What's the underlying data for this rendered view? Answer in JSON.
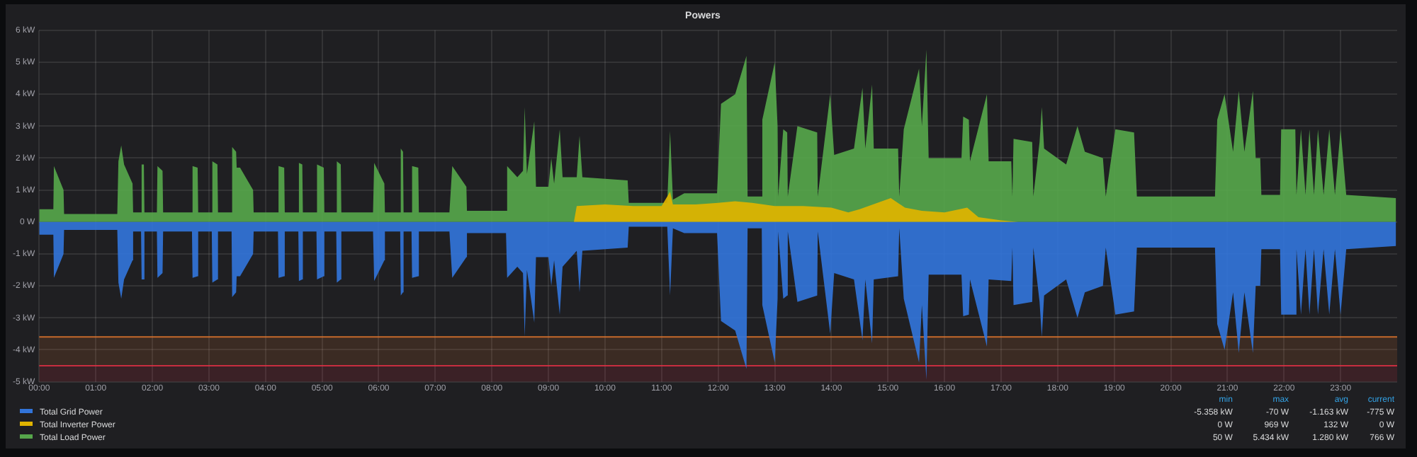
{
  "chart_data": {
    "type": "area",
    "title": "Powers",
    "x": [
      0,
      0.25,
      0.26,
      0.43,
      0.44,
      1.38,
      1.4,
      1.45,
      1.5,
      1.65,
      1.66,
      1.8,
      1.81,
      1.85,
      1.86,
      2.08,
      2.09,
      2.18,
      2.19,
      2.7,
      2.71,
      2.8,
      2.81,
      3.05,
      3.06,
      3.15,
      3.16,
      3.4,
      3.41,
      3.48,
      3.49,
      3.55,
      3.78,
      3.79,
      4.22,
      4.23,
      4.33,
      4.34,
      4.58,
      4.59,
      4.65,
      4.66,
      4.9,
      4.91,
      5.03,
      5.04,
      5.25,
      5.26,
      5.33,
      5.34,
      5.9,
      5.92,
      6.1,
      6.11,
      6.38,
      6.39,
      6.43,
      6.44,
      6.58,
      6.59,
      6.7,
      6.71,
      7.25,
      7.3,
      7.55,
      7.56,
      8.25,
      8.27,
      8.45,
      8.55,
      8.58,
      8.62,
      8.75,
      8.78,
      9.0,
      9.05,
      9.1,
      9.2,
      9.25,
      9.5,
      9.55,
      9.6,
      10.4,
      10.42,
      11.1,
      11.15,
      11.2,
      11.4,
      11.98,
      12.05,
      12.3,
      12.5,
      12.52,
      12.77,
      12.78,
      13.0,
      13.05,
      13.06,
      13.15,
      13.22,
      13.23,
      13.4,
      13.75,
      13.76,
      13.98,
      14.05,
      14.4,
      14.55,
      14.6,
      14.72,
      14.75,
      15.18,
      15.2,
      15.28,
      15.55,
      15.6,
      15.68,
      15.72,
      16.3,
      16.33,
      16.43,
      16.45,
      16.75,
      16.78,
      17.18,
      17.2,
      17.22,
      17.55,
      17.57,
      17.68,
      17.72,
      17.76,
      18.15,
      18.35,
      18.48,
      18.8,
      18.85,
      19.02,
      19.35,
      19.4,
      20.78,
      20.82,
      20.95,
      21.1,
      21.2,
      21.3,
      21.45,
      21.5,
      21.58,
      21.6,
      21.93,
      21.95,
      22.2,
      22.22,
      22.3,
      22.38,
      22.45,
      22.53,
      22.6,
      22.7,
      22.8,
      22.9,
      23.0,
      23.1,
      23.98
    ],
    "series": [
      {
        "name": "Total Grid Power",
        "color": "#3274d9",
        "values": [
          -0.4,
          -0.4,
          -1.75,
          -1.0,
          -0.25,
          -0.25,
          -1.9,
          -2.4,
          -1.8,
          -1.2,
          -0.3,
          -0.3,
          -1.8,
          -1.8,
          -0.3,
          -0.3,
          -1.75,
          -1.6,
          -0.3,
          -0.3,
          -1.75,
          -1.7,
          -0.3,
          -0.3,
          -1.9,
          -1.8,
          -0.3,
          -0.3,
          -2.35,
          -2.2,
          -1.7,
          -1.7,
          -1.0,
          -0.3,
          -0.3,
          -1.75,
          -1.7,
          -0.3,
          -0.3,
          -1.85,
          -1.8,
          -0.3,
          -0.3,
          -1.8,
          -1.7,
          -0.3,
          -0.3,
          -1.9,
          -1.8,
          -0.3,
          -0.3,
          -1.85,
          -1.2,
          -0.3,
          -0.3,
          -2.3,
          -2.2,
          -0.3,
          -0.3,
          -1.75,
          -1.7,
          -0.3,
          -0.3,
          -1.75,
          -1.1,
          -0.35,
          -0.35,
          -1.75,
          -1.4,
          -1.6,
          -3.6,
          -1.5,
          -3.15,
          -1.1,
          -1.1,
          -2.0,
          -1.2,
          -2.9,
          -1.4,
          -0.9,
          -2.2,
          -0.9,
          -0.8,
          -0.15,
          -0.15,
          -2.3,
          -0.2,
          -0.35,
          -0.35,
          -3.1,
          -3.4,
          -4.6,
          -0.2,
          -0.2,
          -2.6,
          -4.4,
          -2.4,
          -0.3,
          -2.4,
          -2.3,
          -0.3,
          -2.5,
          -2.3,
          -0.3,
          -3.5,
          -1.6,
          -1.8,
          -3.7,
          -1.8,
          -3.8,
          -1.8,
          -1.7,
          -0.2,
          -2.4,
          -4.4,
          -2.6,
          -4.95,
          -1.65,
          -1.65,
          -2.95,
          -2.9,
          -1.8,
          -3.9,
          -1.8,
          -1.85,
          -0.8,
          -2.6,
          -2.5,
          -0.8,
          -2.5,
          -3.6,
          -2.3,
          -1.8,
          -3.0,
          -2.2,
          -2.0,
          -0.8,
          -2.9,
          -2.8,
          -0.8,
          -0.8,
          -3.2,
          -4.0,
          -2.2,
          -4.1,
          -2.2,
          -4.1,
          -2.0,
          -2.0,
          -0.85,
          -0.85,
          -2.9,
          -2.9,
          -0.85,
          -2.9,
          -0.85,
          -2.9,
          -0.85,
          -2.9,
          -0.85,
          -2.9,
          -0.85,
          -2.9,
          -0.85,
          -0.75
        ]
      },
      {
        "name": "Total Inverter Power",
        "color": "#e0b400",
        "x": [
          0,
          9.45,
          9.5,
          10,
          10.5,
          11,
          11.15,
          11.2,
          11.6,
          12,
          12.3,
          12.6,
          13,
          13.5,
          14,
          14.3,
          14.5,
          15.05,
          15.3,
          15.6,
          16,
          16.4,
          16.6,
          17.0,
          17.2,
          17.3,
          23.98
        ],
        "values": [
          0,
          0,
          0.5,
          0.55,
          0.5,
          0.5,
          0.95,
          0.55,
          0.55,
          0.6,
          0.65,
          0.6,
          0.5,
          0.5,
          0.45,
          0.3,
          0.4,
          0.75,
          0.45,
          0.35,
          0.3,
          0.45,
          0.15,
          0.05,
          0.02,
          0,
          0
        ]
      },
      {
        "name": "Total Load Power",
        "color": "#56a64b",
        "values": [
          0.4,
          0.4,
          1.75,
          1.0,
          0.25,
          0.25,
          1.9,
          2.4,
          1.8,
          1.2,
          0.3,
          0.3,
          1.8,
          1.8,
          0.3,
          0.3,
          1.75,
          1.6,
          0.3,
          0.3,
          1.75,
          1.7,
          0.3,
          0.3,
          1.9,
          1.8,
          0.3,
          0.3,
          2.35,
          2.2,
          1.7,
          1.7,
          1.0,
          0.3,
          0.3,
          1.75,
          1.7,
          0.3,
          0.3,
          1.85,
          1.8,
          0.3,
          0.3,
          1.8,
          1.7,
          0.3,
          0.3,
          1.9,
          1.8,
          0.3,
          0.3,
          1.85,
          1.2,
          0.3,
          0.3,
          2.3,
          2.2,
          0.3,
          0.3,
          1.75,
          1.7,
          0.3,
          0.3,
          1.75,
          1.1,
          0.35,
          0.35,
          1.75,
          1.4,
          1.6,
          3.6,
          1.5,
          3.15,
          1.1,
          1.1,
          2.0,
          1.2,
          2.9,
          1.4,
          1.4,
          2.7,
          1.4,
          1.3,
          0.6,
          0.6,
          2.85,
          0.7,
          0.9,
          0.9,
          3.7,
          4.0,
          5.2,
          0.8,
          0.8,
          3.2,
          5.0,
          3.0,
          0.8,
          2.9,
          2.8,
          0.8,
          3.0,
          2.8,
          0.8,
          4.0,
          2.1,
          2.3,
          4.2,
          2.3,
          4.3,
          2.3,
          2.3,
          0.8,
          2.9,
          4.8,
          3.0,
          5.4,
          2.0,
          2.0,
          3.3,
          3.2,
          1.9,
          4.0,
          1.9,
          1.9,
          0.8,
          2.6,
          2.5,
          0.8,
          2.5,
          3.6,
          2.3,
          1.8,
          3.0,
          2.2,
          2.0,
          0.8,
          2.9,
          2.8,
          0.8,
          0.8,
          3.2,
          4.0,
          2.2,
          4.1,
          2.2,
          4.1,
          2.0,
          2.0,
          0.85,
          0.85,
          2.9,
          2.9,
          0.85,
          2.9,
          0.85,
          2.9,
          0.85,
          2.9,
          0.85,
          2.9,
          0.85,
          2.9,
          0.85,
          0.75
        ]
      }
    ],
    "xlim": [
      0,
      24
    ],
    "xticks": [
      {
        "value": 0,
        "label": "00:00"
      },
      {
        "value": 1,
        "label": "01:00"
      },
      {
        "value": 2,
        "label": "02:00"
      },
      {
        "value": 3,
        "label": "03:00"
      },
      {
        "value": 4,
        "label": "04:00"
      },
      {
        "value": 5,
        "label": "05:00"
      },
      {
        "value": 6,
        "label": "06:00"
      },
      {
        "value": 7,
        "label": "07:00"
      },
      {
        "value": 8,
        "label": "08:00"
      },
      {
        "value": 9,
        "label": "09:00"
      },
      {
        "value": 10,
        "label": "10:00"
      },
      {
        "value": 11,
        "label": "11:00"
      },
      {
        "value": 12,
        "label": "12:00"
      },
      {
        "value": 13,
        "label": "13:00"
      },
      {
        "value": 14,
        "label": "14:00"
      },
      {
        "value": 15,
        "label": "15:00"
      },
      {
        "value": 16,
        "label": "16:00"
      },
      {
        "value": 17,
        "label": "17:00"
      },
      {
        "value": 18,
        "label": "18:00"
      },
      {
        "value": 19,
        "label": "19:00"
      },
      {
        "value": 20,
        "label": "20:00"
      },
      {
        "value": 21,
        "label": "21:00"
      },
      {
        "value": 22,
        "label": "22:00"
      },
      {
        "value": 23,
        "label": "23:00"
      }
    ],
    "ylim": [
      -5,
      6
    ],
    "yticks": [
      {
        "value": -5,
        "label": "-5 kW"
      },
      {
        "value": -4,
        "label": "-4 kW"
      },
      {
        "value": -3,
        "label": "-3 kW"
      },
      {
        "value": -2,
        "label": "-2 kW"
      },
      {
        "value": -1,
        "label": "-1 kW"
      },
      {
        "value": 0,
        "label": "0 W"
      },
      {
        "value": 1,
        "label": "1 kW"
      },
      {
        "value": 2,
        "label": "2 kW"
      },
      {
        "value": 3,
        "label": "3 kW"
      },
      {
        "value": 4,
        "label": "4 kW"
      },
      {
        "value": 5,
        "label": "5 kW"
      },
      {
        "value": 6,
        "label": "6 kW"
      }
    ],
    "bands": [
      {
        "axis": "y",
        "from": -4.5,
        "to": -3.6,
        "color": "#e0752d"
      },
      {
        "axis": "y",
        "from": -5,
        "to": -4.5,
        "color": "#e02f44"
      }
    ],
    "ref_lines": [
      {
        "axis": "y",
        "value": -3.6,
        "color": "#e0752d"
      },
      {
        "axis": "y",
        "value": -4.5,
        "color": "#e02f44"
      }
    ],
    "grid": true,
    "legend": "bottom",
    "marker": "none",
    "annotations": [
      "min",
      "max",
      "avg",
      "current",
      "-5.358 kW",
      "-70 W",
      "-1.163 kW",
      "-775 W",
      "0 W",
      "969 W",
      "132 W",
      "0 W",
      "50 W",
      "5.434 kW",
      "1.280 kW",
      "766 W"
    ]
  }
}
